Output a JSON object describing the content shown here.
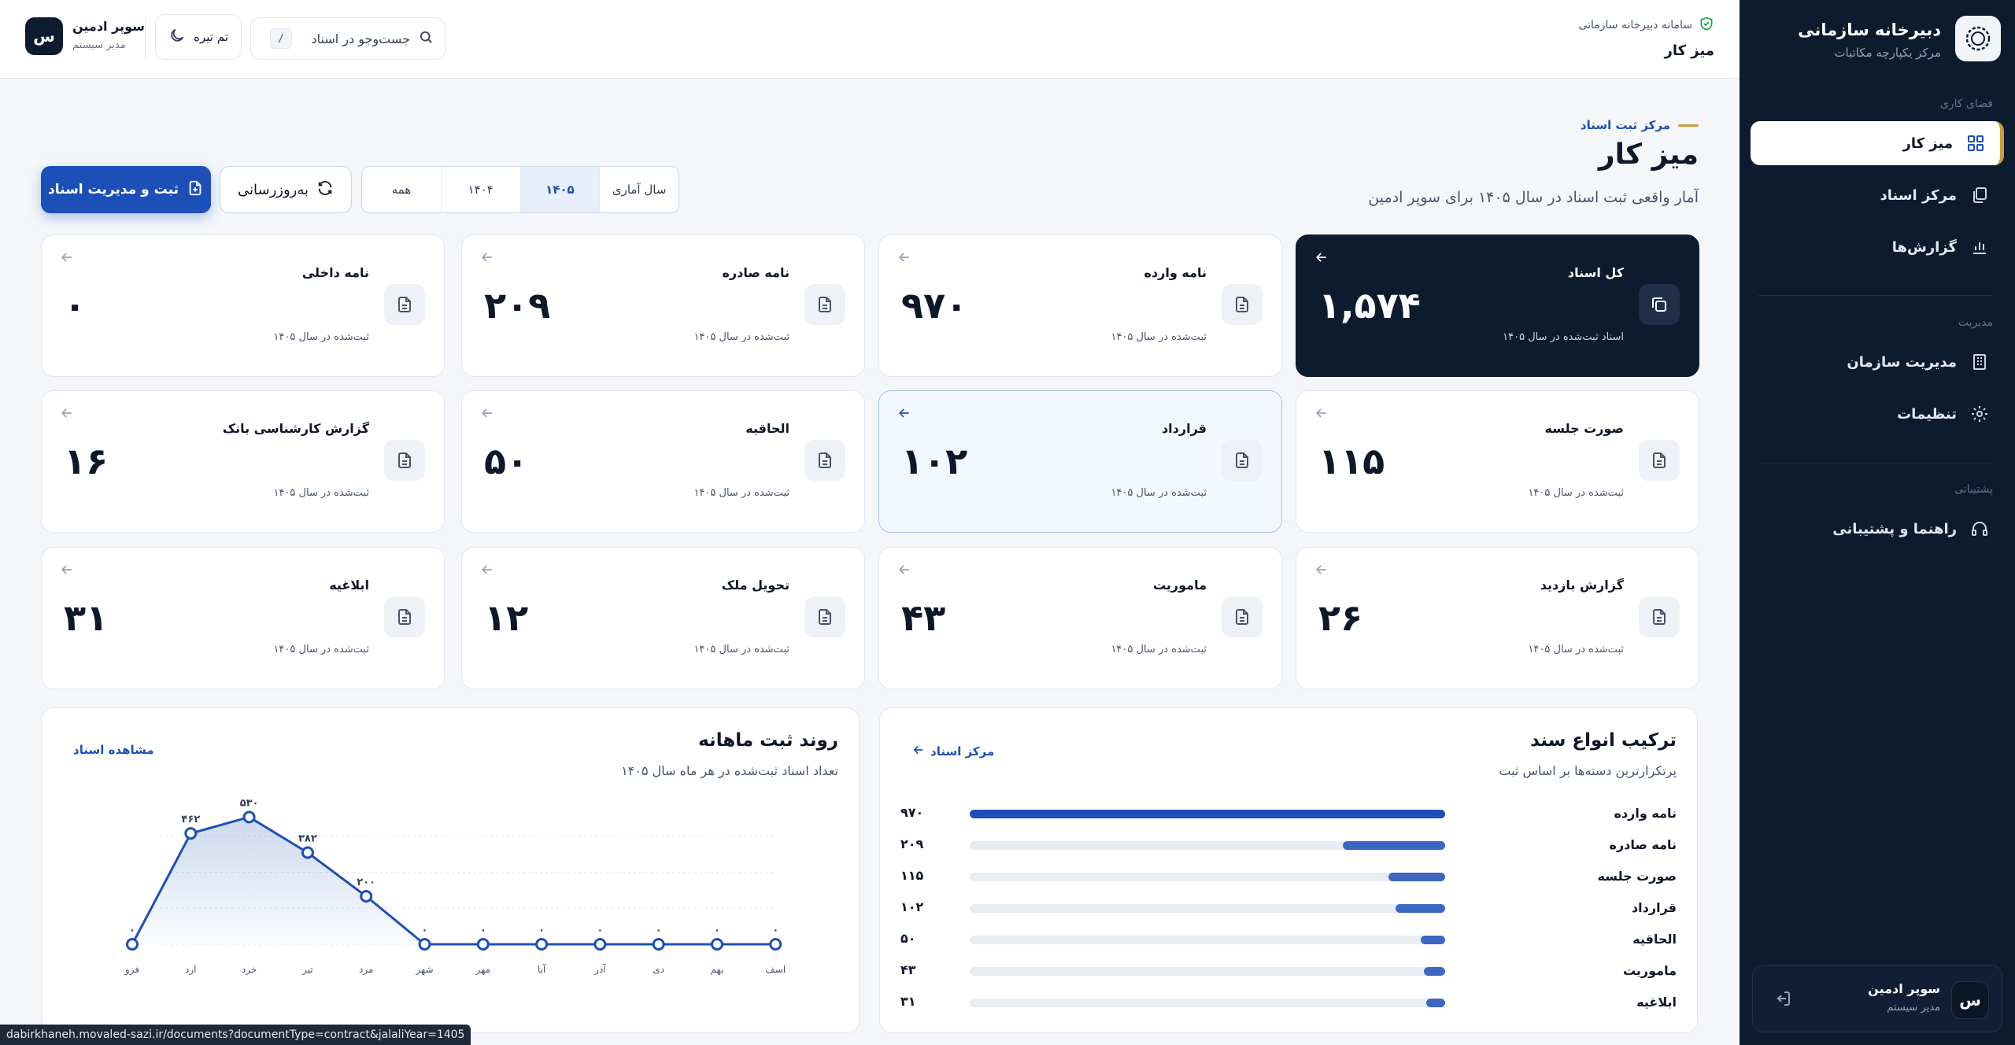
{
  "sidebar": {
    "title": "دبیرخانه سازمانی",
    "subtitle": "مرکز یکپارچه مکاتبات",
    "sections": {
      "workspace": "فضای کاری",
      "management": "مدیریت",
      "support": "پشتیبانی"
    },
    "items": [
      {
        "label": "میز کار",
        "icon": "dashboard-grid-icon",
        "active": true
      },
      {
        "label": "مرکز اسناد",
        "icon": "documents-icon"
      },
      {
        "label": "گزارش‌ها",
        "icon": "bar-chart-icon"
      },
      {
        "label": "مدیریت سازمان",
        "icon": "building-icon"
      },
      {
        "label": "تنظیمات",
        "icon": "gear-icon"
      },
      {
        "label": "راهنما و پشتیبانی",
        "icon": "headset-icon"
      }
    ],
    "user": {
      "avatar": "س",
      "name": "سوپر ادمین",
      "role": "مدیر سیستم"
    }
  },
  "header": {
    "system_name": "سامانه دبیرخانه سازمانی",
    "title": "میز کار",
    "search_placeholder": "جست‌وجو در اسناد",
    "search_shortcut": "/",
    "theme_label": "تم تیره",
    "user": {
      "avatar": "س",
      "name": "سوپر ادمین",
      "role": "مدیر سیستم"
    }
  },
  "page": {
    "eyebrow": "مرکز ثبت اسناد",
    "title": "میز کار",
    "subtitle": "آمار واقعی ثبت اسناد در سال ۱۴۰۵ برای سوپر ادمین",
    "year_filter": {
      "label": "سال آماری",
      "options": [
        "۱۴۰۵",
        "۱۴۰۴",
        "همه"
      ],
      "selected": "۱۴۰۵"
    },
    "refresh_label": "به‌روزرسانی",
    "primary_label": "ثبت و مدیریت اسناد"
  },
  "stats": [
    {
      "title": "کل اسناد",
      "value": "۱,۵۷۴",
      "sub": "اسناد ثبت‌شده در سال ۱۴۰۵",
      "variant": "dark"
    },
    {
      "title": "نامه وارده",
      "value": "۹۷۰",
      "sub": "ثبت‌شده در سال ۱۴۰۵"
    },
    {
      "title": "نامه صادره",
      "value": "۲۰۹",
      "sub": "ثبت‌شده در سال ۱۴۰۵"
    },
    {
      "title": "نامه داخلی",
      "value": "۰",
      "sub": "ثبت‌شده در سال ۱۴۰۵"
    },
    {
      "title": "صورت جلسه",
      "value": "۱۱۵",
      "sub": "ثبت‌شده در سال ۱۴۰۵"
    },
    {
      "title": "قرارداد",
      "value": "۱۰۲",
      "sub": "ثبت‌شده در سال ۱۴۰۵",
      "variant": "highlight"
    },
    {
      "title": "الحاقیه",
      "value": "۵۰",
      "sub": "ثبت‌شده در سال ۱۴۰۵"
    },
    {
      "title": "گزارش کارشناسی بانک",
      "value": "۱۶",
      "sub": "ثبت‌شده در سال ۱۴۰۵"
    },
    {
      "title": "گزارش بازدید",
      "value": "۲۶",
      "sub": "ثبت‌شده در سال ۱۴۰۵"
    },
    {
      "title": "ماموریت",
      "value": "۴۳",
      "sub": "ثبت‌شده در سال ۱۴۰۵"
    },
    {
      "title": "تحویل ملک",
      "value": "۱۲",
      "sub": "ثبت‌شده در سال ۱۴۰۵"
    },
    {
      "title": "ابلاغیه",
      "value": "۳۱",
      "sub": "ثبت‌شده در سال ۱۴۰۵"
    }
  ],
  "doc_mix": {
    "title": "ترکیب انواع سند",
    "subtitle": "پرتکرارترین دسته‌ها بر اساس ثبت",
    "link": "مرکز اسناد",
    "rows": [
      {
        "name": "نامه وارده",
        "value": 970,
        "label": "۹۷۰"
      },
      {
        "name": "نامه صادره",
        "value": 209,
        "label": "۲۰۹"
      },
      {
        "name": "صورت جلسه",
        "value": 115,
        "label": "۱۱۵"
      },
      {
        "name": "قرارداد",
        "value": 102,
        "label": "۱۰۲"
      },
      {
        "name": "الحاقیه",
        "value": 50,
        "label": "۵۰"
      },
      {
        "name": "ماموریت",
        "value": 43,
        "label": "۴۳"
      },
      {
        "name": "ابلاغیه",
        "value": 31,
        "label": "۳۱"
      }
    ]
  },
  "trend": {
    "title": "روند ثبت ماهانه",
    "subtitle": "تعداد اسناد ثبت‌شده در هر ماه سال ۱۴۰۵",
    "link": "مشاهده اسناد"
  },
  "chart_data": {
    "type": "line",
    "title": "روند ثبت ماهانه",
    "x": [
      "فرو",
      "ارد",
      "خرد",
      "تیر",
      "مرد",
      "شهر",
      "مهر",
      "آبا",
      "آذر",
      "دی",
      "بهم",
      "اسف"
    ],
    "series": [
      {
        "values": [
          0,
          462,
          530,
          382,
          200,
          0,
          0,
          0,
          0,
          0,
          0,
          0
        ],
        "labels": [
          "۰",
          "۴۶۲",
          "۵۳۰",
          "۳۸۲",
          "۲۰۰",
          "۰",
          "۰",
          "۰",
          "۰",
          "۰",
          "۰",
          "۰"
        ]
      }
    ],
    "ylim": [
      0,
      600
    ],
    "grid": true,
    "color": "#1d4fb8"
  },
  "status_url": "dabirkhaneh.movaled-sazi.ir/documents?documentType=contract&jalaliYear=1405",
  "colors": {
    "primary": "#1d4fb8",
    "sidebar": "#0d1b2e",
    "accent": "#c89b3c"
  }
}
